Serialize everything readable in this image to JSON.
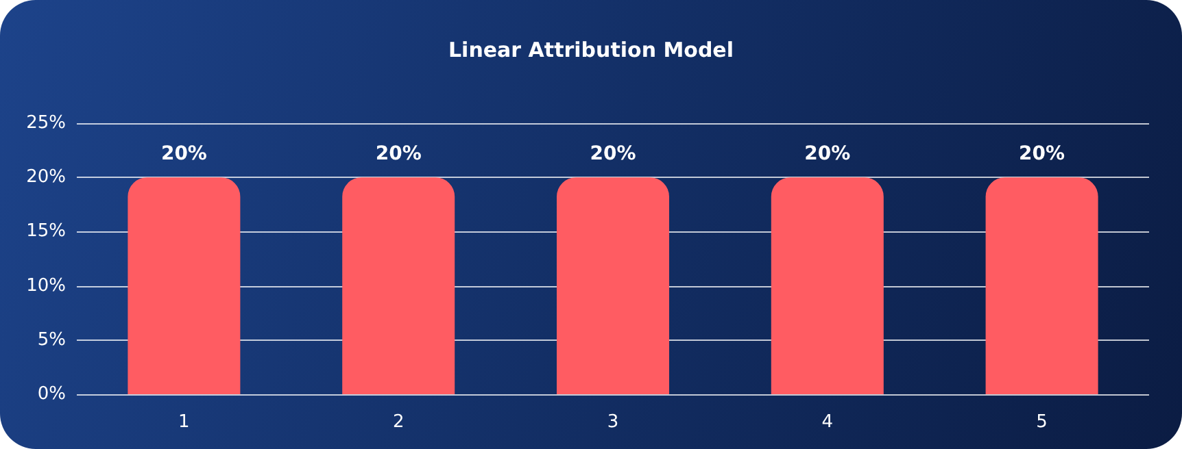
{
  "chart_data": {
    "type": "bar",
    "title": "Linear Attribution Model",
    "categories": [
      "1",
      "2",
      "3",
      "4",
      "5"
    ],
    "values": [
      20,
      20,
      20,
      20,
      20
    ],
    "value_labels": [
      "20%",
      "20%",
      "20%",
      "20%",
      "20%"
    ],
    "color": "#ff5c62",
    "ylim": [
      0,
      25
    ],
    "yticks": [
      {
        "value": 0,
        "label": "0%"
      },
      {
        "value": 5,
        "label": "5%"
      },
      {
        "value": 10,
        "label": "10%"
      },
      {
        "value": 15,
        "label": "15%"
      },
      {
        "value": 20,
        "label": "20%"
      },
      {
        "value": 25,
        "label": "25%"
      }
    ],
    "grid": "y"
  }
}
